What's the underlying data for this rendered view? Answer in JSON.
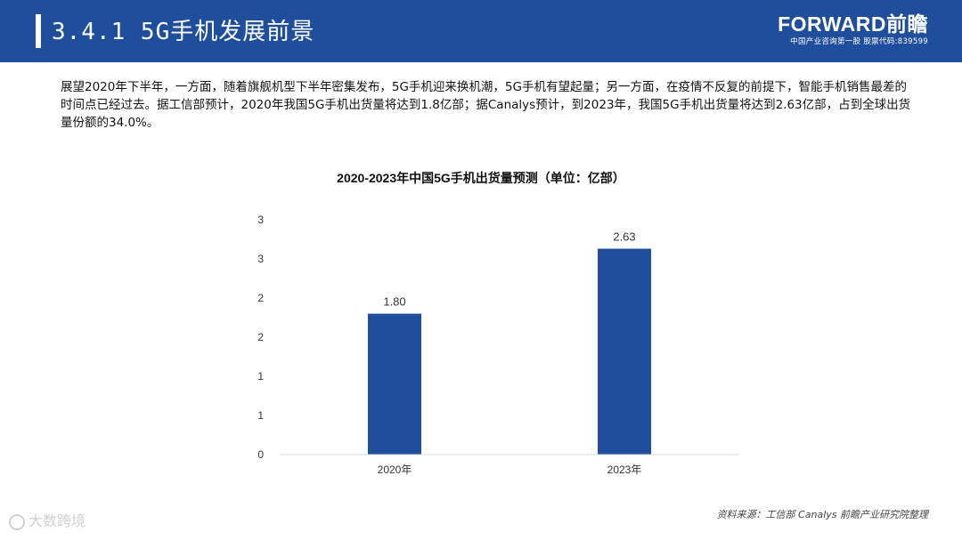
{
  "header": {
    "title": "3.4.1 5G手机发展前景",
    "brand_name": "FORWARD前瞻",
    "brand_sub": "中国产业咨询第一股 股票代码:839599"
  },
  "intro_text": "展望2020年下半年，一方面，随着旗舰机型下半年密集发布，5G手机迎来换机潮，5G手机有望起量；另一方面，在疫情不反复的前提下，智能手机销售最差的时间点已经过去。据工信部预计，2020年我国5G手机出货量将达到1.8亿部；据Canalys预计，到2023年，我国5G手机出货量将达到2.63亿部，占到全球出货量份额的34.0%。",
  "source": "资料来源：工信部 Canalys 前瞻产业研究院整理",
  "watermark": "大数跨境",
  "colors": {
    "header_bg": "#1f4e9c",
    "bar": "#1f4e9c",
    "axis": "#d9d9d9"
  },
  "chart_data": {
    "type": "bar",
    "title": "2020-2023年中国5G手机出货量预测（单位：亿部）",
    "categories": [
      "2020年",
      "2023年"
    ],
    "values": [
      1.8,
      2.63
    ],
    "value_labels": [
      "1.80",
      "2.63"
    ],
    "ylim": [
      0,
      3
    ],
    "y_ticks": [
      0,
      0.5,
      1,
      1.5,
      2,
      2.5,
      3
    ],
    "y_tick_labels": [
      "0",
      "1",
      "1",
      "2",
      "2",
      "3",
      "3"
    ],
    "xlabel": "",
    "ylabel": "",
    "grid": false,
    "legend": false
  }
}
